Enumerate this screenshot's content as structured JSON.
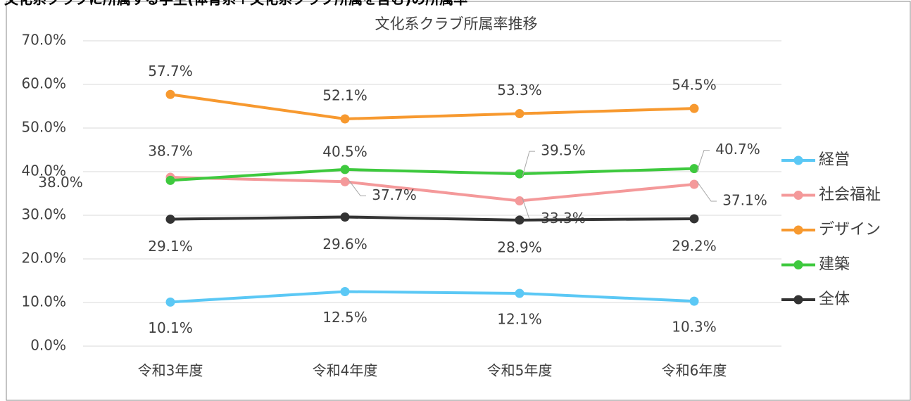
{
  "header": "文化系クラブに所属する学生(体育系＋文化系クラブ所属を含む)の所属率",
  "chart_data": {
    "type": "line",
    "title": "文化系クラブ所属率推移",
    "categories": [
      "令和3年度",
      "令和4年度",
      "令和5年度",
      "令和6年度"
    ],
    "series": [
      {
        "name": "経営",
        "color": "#5bc8f5",
        "values": [
          10.1,
          12.5,
          12.1,
          10.3
        ],
        "value_labels": [
          "10.1%",
          "12.5%",
          "12.1%",
          "10.3%"
        ]
      },
      {
        "name": "社会福祉",
        "color": "#f4999a",
        "values": [
          38.7,
          37.7,
          33.3,
          37.1
        ],
        "value_labels": [
          "38.7%",
          "37.7%",
          "33.3%",
          "37.1%"
        ]
      },
      {
        "name": "デザイン",
        "color": "#f7992f",
        "values": [
          57.7,
          52.1,
          53.3,
          54.5
        ],
        "value_labels": [
          "57.7%",
          "52.1%",
          "53.3%",
          "54.5%"
        ]
      },
      {
        "name": "建築",
        "color": "#3ec93e",
        "values": [
          38.0,
          40.5,
          39.5,
          40.7
        ],
        "value_labels": [
          "38.0%",
          "40.5%",
          "39.5%",
          "40.7%"
        ]
      },
      {
        "name": "全体",
        "color": "#333333",
        "values": [
          29.1,
          29.6,
          28.9,
          29.2
        ],
        "value_labels": [
          "29.1%",
          "29.6%",
          "28.9%",
          "29.2%"
        ]
      }
    ],
    "ylim": [
      0,
      70
    ],
    "yticks": [
      {
        "value": 0,
        "label": "0.0%"
      },
      {
        "value": 10,
        "label": "10.0%"
      },
      {
        "value": 20,
        "label": "20.0%"
      },
      {
        "value": 30,
        "label": "30.0%"
      },
      {
        "value": 40,
        "label": "40.0%"
      },
      {
        "value": 50,
        "label": "50.0%"
      },
      {
        "value": 60,
        "label": "60.0%"
      },
      {
        "value": 70,
        "label": "70.0%"
      }
    ],
    "grid": true,
    "legend": "right"
  }
}
